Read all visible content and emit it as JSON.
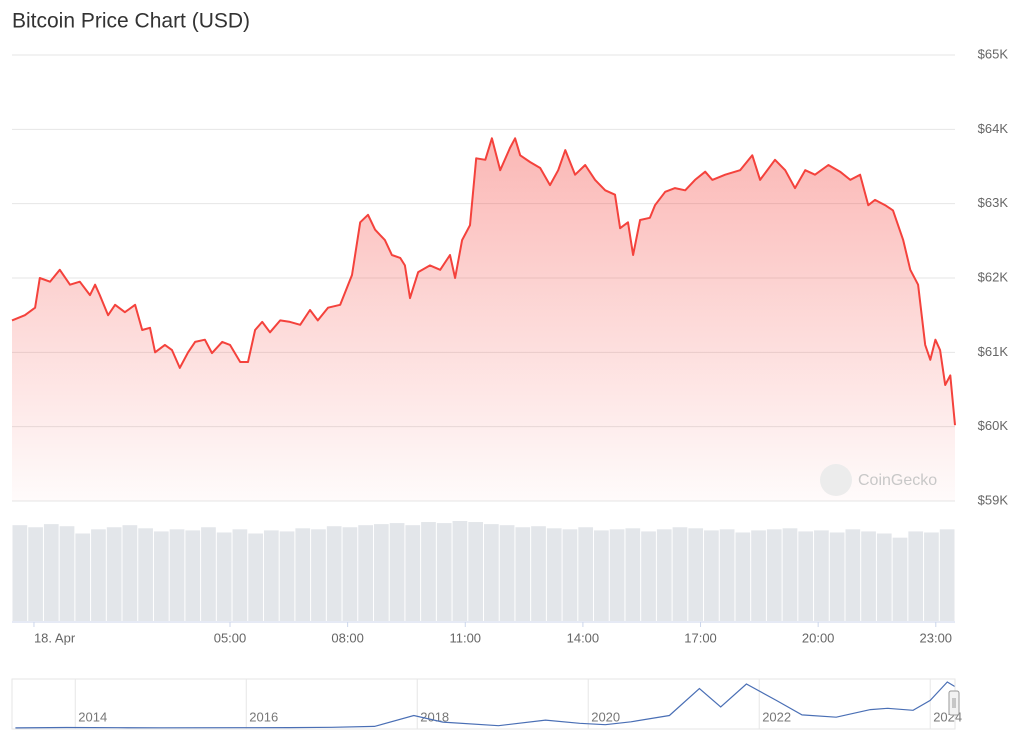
{
  "chart_data": {
    "type": "area",
    "title": "Bitcoin Price Chart (USD)",
    "watermark": "CoinGecko",
    "color": "#f4423c",
    "x": [
      -0.56,
      -0.23,
      0.03,
      0.15,
      0.41,
      0.66,
      0.92,
      1.17,
      1.43,
      1.56,
      1.68,
      1.89,
      2.07,
      2.32,
      2.58,
      2.76,
      2.96,
      3.09,
      3.34,
      3.52,
      3.72,
      3.93,
      4.11,
      4.36,
      4.54,
      4.8,
      5.0,
      5.26,
      5.46,
      5.64,
      5.82,
      6.02,
      6.28,
      6.53,
      6.79,
      7.04,
      7.24,
      7.5,
      7.81,
      8.11,
      8.32,
      8.52,
      8.7,
      8.95,
      9.13,
      9.34,
      9.46,
      9.59,
      9.8,
      10.1,
      10.36,
      10.61,
      10.74,
      10.92,
      11.12,
      11.28,
      11.51,
      11.68,
      11.89,
      12.14,
      12.27,
      12.4,
      12.65,
      12.91,
      13.16,
      13.37,
      13.55,
      13.8,
      14.06,
      14.31,
      14.57,
      14.82,
      14.95,
      15.15,
      15.28,
      15.46,
      15.71,
      15.84,
      16.1,
      16.35,
      16.61,
      16.86,
      17.12,
      17.3,
      17.63,
      18.01,
      18.32,
      18.52,
      18.9,
      19.16,
      19.41,
      19.67,
      19.92,
      20.26,
      20.56,
      20.82,
      21.07,
      21.28,
      21.45,
      21.71,
      21.91,
      22.17,
      22.35,
      22.55,
      22.73,
      22.86,
      22.99,
      23.11,
      23.24,
      23.37,
      23.49
    ],
    "values": [
      61430,
      61500,
      61600,
      62000,
      61950,
      62110,
      61910,
      61950,
      61770,
      61910,
      61770,
      61500,
      61640,
      61540,
      61640,
      61300,
      61330,
      61000,
      61100,
      61030,
      60790,
      61000,
      61140,
      61170,
      60990,
      61140,
      61100,
      60870,
      60870,
      61300,
      61410,
      61270,
      61430,
      61410,
      61370,
      61570,
      61430,
      61600,
      61640,
      62040,
      62750,
      62850,
      62650,
      62510,
      62310,
      62270,
      62170,
      61730,
      62080,
      62170,
      62110,
      62310,
      62000,
      62510,
      62710,
      63610,
      63590,
      63880,
      63450,
      63750,
      63880,
      63650,
      63560,
      63480,
      63250,
      63450,
      63720,
      63390,
      63520,
      63320,
      63180,
      63120,
      62670,
      62750,
      62310,
      62780,
      62810,
      62980,
      63160,
      63210,
      63180,
      63320,
      63430,
      63320,
      63390,
      63450,
      63650,
      63320,
      63590,
      63450,
      63210,
      63450,
      63390,
      63520,
      63430,
      63320,
      63390,
      62980,
      63050,
      62980,
      62910,
      62510,
      62110,
      61910,
      61100,
      60900,
      61170,
      61030,
      60560,
      60690,
      60020
    ],
    "xlim": [
      -0.56,
      23.49
    ],
    "xticks": [
      {
        "value": 0,
        "label": "18. Apr"
      },
      {
        "value": 5,
        "label": "05:00"
      },
      {
        "value": 8,
        "label": "08:00"
      },
      {
        "value": 11,
        "label": "11:00"
      },
      {
        "value": 14,
        "label": "14:00"
      },
      {
        "value": 17,
        "label": "17:00"
      },
      {
        "value": 20,
        "label": "20:00"
      },
      {
        "value": 23,
        "label": "23:00"
      }
    ],
    "ylim": [
      59000,
      65000
    ],
    "yticks": [
      {
        "value": 59000,
        "label": "$59K"
      },
      {
        "value": 60000,
        "label": "$60K"
      },
      {
        "value": 61000,
        "label": "$61K"
      },
      {
        "value": 62000,
        "label": "$62K"
      },
      {
        "value": 63000,
        "label": "$63K"
      },
      {
        "value": 64000,
        "label": "$64K"
      },
      {
        "value": 65000,
        "label": "$65K"
      }
    ],
    "grid": true,
    "volume": {
      "color": "#e3e6ea",
      "values": [
        92,
        90,
        93,
        91,
        84,
        88,
        90,
        92,
        89,
        86,
        88,
        87,
        90,
        85,
        88,
        84,
        87,
        86,
        89,
        88,
        91,
        90,
        92,
        93,
        94,
        92,
        95,
        94,
        96,
        95,
        93,
        92,
        90,
        91,
        89,
        88,
        90,
        87,
        88,
        89,
        86,
        88,
        90,
        89,
        87,
        88,
        85,
        87,
        88,
        89,
        86,
        87,
        85,
        88,
        86,
        84,
        80,
        86,
        85,
        88
      ]
    },
    "navigator": {
      "type": "line",
      "color": "#4a6fb5",
      "x": [
        2013.3,
        2013.9,
        2014.5,
        2015.0,
        2015.9,
        2016.5,
        2017.0,
        2017.5,
        2017.96,
        2018.3,
        2018.95,
        2019.5,
        2019.9,
        2020.2,
        2020.5,
        2020.95,
        2021.3,
        2021.55,
        2021.85,
        2022.2,
        2022.5,
        2022.9,
        2023.3,
        2023.5,
        2023.8,
        2024.0,
        2024.2,
        2024.29
      ],
      "values": [
        100,
        800,
        500,
        250,
        430,
        650,
        1000,
        2500,
        19000,
        9000,
        3500,
        12000,
        7200,
        5000,
        9500,
        19000,
        60000,
        32000,
        67000,
        42000,
        20000,
        16500,
        28000,
        30000,
        27000,
        42000,
        70000,
        63000
      ],
      "xlim": [
        2013.26,
        2024.29
      ],
      "xticks": [
        2014,
        2016,
        2018,
        2020,
        2022,
        2024
      ]
    }
  }
}
